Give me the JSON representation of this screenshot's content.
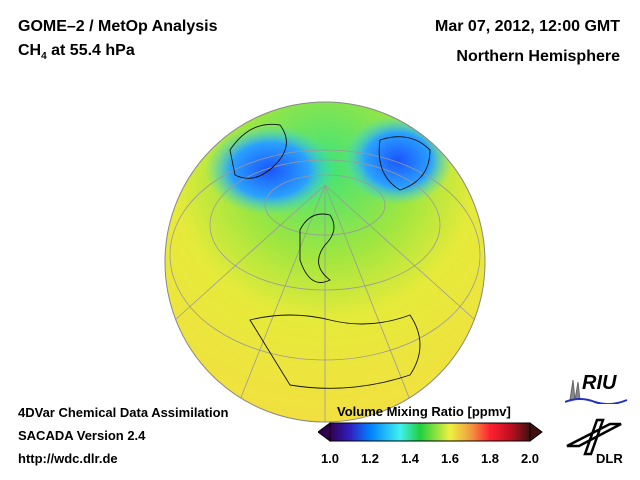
{
  "header": {
    "title": "GOME–2 / MetOp Analysis",
    "species": "CH",
    "species_sub": "4",
    "level": " at 55.4 hPa",
    "datetime": "Mar 07, 2012, 12:00 GMT",
    "region": "Northern Hemisphere"
  },
  "footer": {
    "line1": "4DVar Chemical Data Assimilation",
    "line2": "SACADA Version 2.4",
    "line3": "http://wdc.dlr.de"
  },
  "colorbar": {
    "title": "Volume Mixing Ratio [ppmv]",
    "ticks": [
      "1.0",
      "1.2",
      "1.4",
      "1.6",
      "1.8",
      "2.0"
    ],
    "range": [
      1.0,
      2.0
    ]
  },
  "logos": {
    "riu": "RIU",
    "dlr": "DLR"
  }
}
